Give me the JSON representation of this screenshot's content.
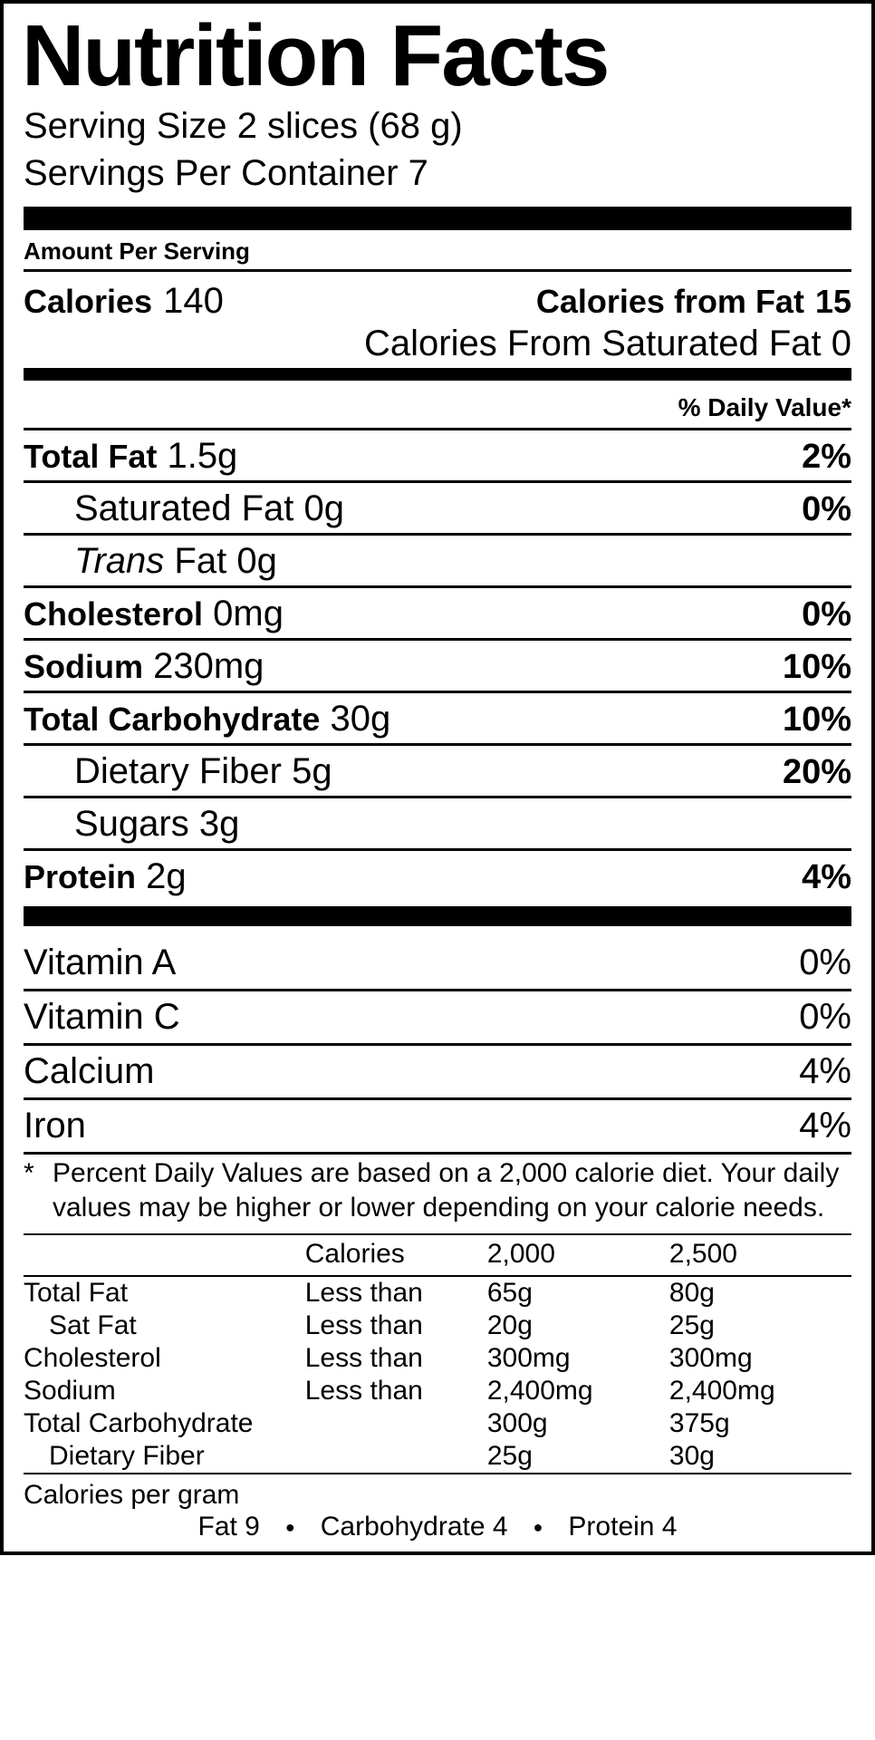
{
  "title": "Nutrition Facts",
  "serving_size_label": "Serving Size",
  "serving_size_value": "2 slices (68 g)",
  "servings_per_container_label": "Servings Per Container",
  "servings_per_container_value": "7",
  "amount_per_serving_label": "Amount Per Serving",
  "calories_label": "Calories",
  "calories_value": "140",
  "calories_from_fat_label": "Calories from Fat",
  "calories_from_fat_value": "15",
  "calories_from_sat_fat_label": "Calories From Saturated Fat",
  "calories_from_sat_fat_value": "0",
  "daily_value_header": "% Daily Value*",
  "nutrients": {
    "total_fat": {
      "label": "Total Fat",
      "value": "1.5g",
      "dv": "2%"
    },
    "saturated_fat": {
      "label": "Saturated Fat",
      "value": "0g",
      "dv": "0%"
    },
    "trans_fat_prefix": "Trans",
    "trans_fat": {
      "label": "Fat",
      "value": "0g",
      "dv": ""
    },
    "cholesterol": {
      "label": "Cholesterol",
      "value": "0mg",
      "dv": "0%"
    },
    "sodium": {
      "label": "Sodium",
      "value": "230mg",
      "dv": "10%"
    },
    "total_carb": {
      "label": "Total Carbohydrate",
      "value": "30g",
      "dv": "10%"
    },
    "dietary_fiber": {
      "label": "Dietary Fiber",
      "value": "5g",
      "dv": "20%"
    },
    "sugars": {
      "label": "Sugars",
      "value": "3g",
      "dv": ""
    },
    "protein": {
      "label": "Protein",
      "value": "2g",
      "dv": "4%"
    }
  },
  "vitamins": {
    "vit_a": {
      "label": "Vitamin A",
      "dv": "0%"
    },
    "vit_c": {
      "label": "Vitamin C",
      "dv": "0%"
    },
    "calcium": {
      "label": "Calcium",
      "dv": "4%"
    },
    "iron": {
      "label": "Iron",
      "dv": "4%"
    }
  },
  "footnote_star": "*",
  "footnote_text": "Percent Daily Values are based on a 2,000 calorie diet. Your daily values may be higher or lower depending on your calorie needs.",
  "ref_table": {
    "header": {
      "c1": "",
      "c2": "Calories",
      "c3": "2,000",
      "c4": "2,500"
    },
    "rows": [
      {
        "c1": "Total Fat",
        "c2": "Less than",
        "c3": "65g",
        "c4": "80g",
        "indent": false
      },
      {
        "c1": "Sat Fat",
        "c2": "Less than",
        "c3": "20g",
        "c4": "25g",
        "indent": true
      },
      {
        "c1": "Cholesterol",
        "c2": "Less than",
        "c3": "300mg",
        "c4": "300mg",
        "indent": false
      },
      {
        "c1": "Sodium",
        "c2": "Less than",
        "c3": "2,400mg",
        "c4": "2,400mg",
        "indent": false
      },
      {
        "c1": "Total Carbohydrate",
        "c2": "",
        "c3": "300g",
        "c4": "375g",
        "indent": false
      },
      {
        "c1": "Dietary Fiber",
        "c2": "",
        "c3": "25g",
        "c4": "30g",
        "indent": true
      }
    ]
  },
  "cpg_label": "Calories per gram",
  "cpg_fat": "Fat 9",
  "cpg_carb": "Carbohydrate 4",
  "cpg_prot": "Protein 4",
  "colors": {
    "border": "#000000",
    "background": "#ffffff",
    "text": "#000000"
  }
}
